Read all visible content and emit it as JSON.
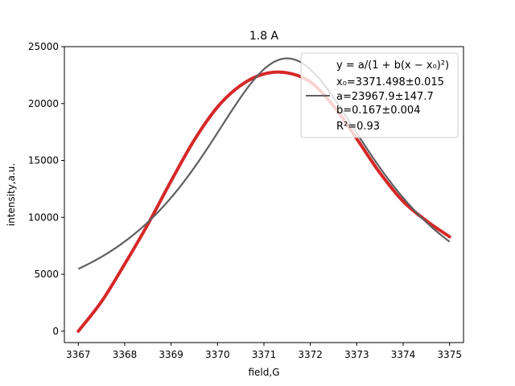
{
  "chart_data": {
    "type": "line",
    "title": "1.8 A",
    "xlabel": "field,G",
    "ylabel": "intensity,a.u.",
    "xlim": [
      3366.7,
      3375.3
    ],
    "ylim": [
      -1000,
      25000
    ],
    "xticks": [
      3367,
      3368,
      3369,
      3370,
      3371,
      3372,
      3373,
      3374,
      3375
    ],
    "yticks": [
      0,
      5000,
      10000,
      15000,
      20000,
      25000
    ],
    "grid": false,
    "legend_position": "top-right",
    "series": [
      {
        "kind": "data",
        "color": "#d62728",
        "x": [
          3367.0,
          3367.5,
          3368.0,
          3368.5,
          3369.0,
          3369.5,
          3370.0,
          3370.5,
          3371.0,
          3371.5,
          3372.0,
          3372.5,
          3373.0,
          3373.5,
          3374.0,
          3374.5,
          3375.0
        ],
        "values": [
          0,
          2600,
          5900,
          9400,
          13200,
          16800,
          19700,
          21600,
          22600,
          22700,
          21900,
          19800,
          16900,
          13900,
          11400,
          9700,
          8300
        ]
      },
      {
        "kind": "fit",
        "color": "#5f5f5f",
        "equation": "y = a/(1 + b(x − x0)²)",
        "params": {
          "x0": 3371.498,
          "a": 23967.9,
          "b": 0.167
        }
      }
    ],
    "legend": {
      "lines": [
        "y = a/(1 + b(x − x₀)²)",
        "x₀=3371.498±0.015",
        "a=23967.9±147.7",
        "b=0.167±0.004",
        "R²=0.93"
      ]
    }
  },
  "colors": {
    "data_series": "#d62728",
    "fit_curve": "#5f5f5f"
  }
}
